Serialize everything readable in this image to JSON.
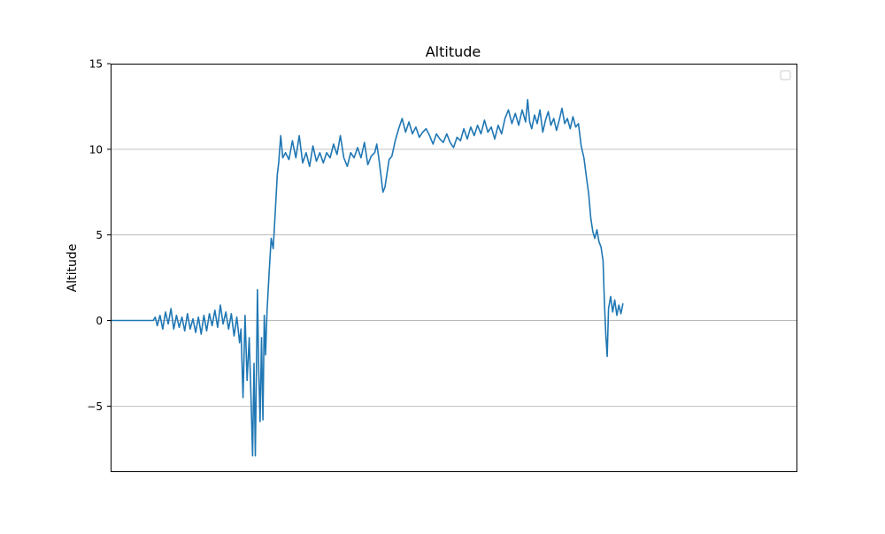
{
  "chart_data": {
    "type": "line",
    "title": "Altitude",
    "xlabel": "",
    "ylabel": "Altitude",
    "xlim": [
      0,
      1000
    ],
    "ylim": [
      -8.8,
      15
    ],
    "x_ticks_shown": false,
    "y_ticks": [
      15,
      10,
      5,
      0,
      -5
    ],
    "y_tick_labels": [
      "15",
      "10",
      "5",
      "0",
      "−5"
    ],
    "grid": "horizontal",
    "legend": "top-right",
    "series": [
      {
        "color": "#1f77b4",
        "points": [
          [
            0,
            0
          ],
          [
            30,
            0
          ],
          [
            62,
            0
          ],
          [
            65,
            0.2
          ],
          [
            68,
            -0.3
          ],
          [
            72,
            0.3
          ],
          [
            76,
            -0.5
          ],
          [
            80,
            0.5
          ],
          [
            84,
            -0.2
          ],
          [
            88,
            0.7
          ],
          [
            92,
            -0.5
          ],
          [
            96,
            0.3
          ],
          [
            100,
            -0.4
          ],
          [
            104,
            0.2
          ],
          [
            108,
            -0.6
          ],
          [
            112,
            0.4
          ],
          [
            116,
            -0.5
          ],
          [
            120,
            0.1
          ],
          [
            124,
            -0.7
          ],
          [
            128,
            0.2
          ],
          [
            132,
            -0.8
          ],
          [
            136,
            0.3
          ],
          [
            140,
            -0.6
          ],
          [
            144,
            0.4
          ],
          [
            148,
            -0.3
          ],
          [
            152,
            0.6
          ],
          [
            156,
            -0.4
          ],
          [
            160,
            0.9
          ],
          [
            164,
            -0.2
          ],
          [
            168,
            0.5
          ],
          [
            172,
            -0.5
          ],
          [
            176,
            0.4
          ],
          [
            180,
            -0.9
          ],
          [
            184,
            0.2
          ],
          [
            188,
            -1.3
          ],
          [
            190,
            -0.5
          ],
          [
            193,
            -4.5
          ],
          [
            196,
            0.3
          ],
          [
            199,
            -3.5
          ],
          [
            202,
            -1.0
          ],
          [
            205,
            -5.0
          ],
          [
            207,
            -7.9
          ],
          [
            209,
            -2.5
          ],
          [
            211,
            -7.9
          ],
          [
            214,
            1.8
          ],
          [
            216,
            -3.0
          ],
          [
            218,
            -5.9
          ],
          [
            220,
            -1.0
          ],
          [
            222,
            -5.8
          ],
          [
            224,
            0.3
          ],
          [
            226,
            -2.0
          ],
          [
            228,
            0.5
          ],
          [
            231,
            2.7
          ],
          [
            234,
            4.8
          ],
          [
            237,
            4.2
          ],
          [
            240,
            6.3
          ],
          [
            243,
            8.5
          ],
          [
            245,
            9.2
          ],
          [
            248,
            10.8
          ],
          [
            251,
            9.5
          ],
          [
            255,
            9.8
          ],
          [
            260,
            9.4
          ],
          [
            265,
            10.5
          ],
          [
            270,
            9.5
          ],
          [
            275,
            10.8
          ],
          [
            280,
            9.2
          ],
          [
            285,
            9.8
          ],
          [
            290,
            9.0
          ],
          [
            295,
            10.2
          ],
          [
            300,
            9.3
          ],
          [
            305,
            9.8
          ],
          [
            310,
            9.2
          ],
          [
            315,
            9.8
          ],
          [
            320,
            9.5
          ],
          [
            325,
            10.3
          ],
          [
            330,
            9.7
          ],
          [
            335,
            10.8
          ],
          [
            340,
            9.5
          ],
          [
            345,
            9.0
          ],
          [
            350,
            9.8
          ],
          [
            355,
            9.5
          ],
          [
            360,
            10.1
          ],
          [
            365,
            9.5
          ],
          [
            370,
            10.4
          ],
          [
            375,
            9.1
          ],
          [
            380,
            9.6
          ],
          [
            385,
            9.8
          ],
          [
            388,
            10.3
          ],
          [
            391,
            9.5
          ],
          [
            394,
            8.5
          ],
          [
            397,
            7.5
          ],
          [
            400,
            7.8
          ],
          [
            403,
            8.6
          ],
          [
            406,
            9.4
          ],
          [
            410,
            9.6
          ],
          [
            415,
            10.5
          ],
          [
            420,
            11.2
          ],
          [
            425,
            11.8
          ],
          [
            430,
            11.0
          ],
          [
            435,
            11.6
          ],
          [
            440,
            10.9
          ],
          [
            445,
            11.3
          ],
          [
            450,
            10.7
          ],
          [
            455,
            11.0
          ],
          [
            460,
            11.2
          ],
          [
            465,
            10.8
          ],
          [
            470,
            10.3
          ],
          [
            475,
            10.9
          ],
          [
            480,
            10.6
          ],
          [
            485,
            10.4
          ],
          [
            490,
            10.9
          ],
          [
            495,
            10.4
          ],
          [
            500,
            10.1
          ],
          [
            505,
            10.7
          ],
          [
            510,
            10.5
          ],
          [
            515,
            11.2
          ],
          [
            520,
            10.6
          ],
          [
            525,
            11.3
          ],
          [
            530,
            10.8
          ],
          [
            535,
            11.4
          ],
          [
            540,
            10.9
          ],
          [
            545,
            11.7
          ],
          [
            550,
            11.0
          ],
          [
            555,
            11.3
          ],
          [
            560,
            10.6
          ],
          [
            565,
            11.4
          ],
          [
            570,
            10.9
          ],
          [
            575,
            11.8
          ],
          [
            580,
            12.3
          ],
          [
            585,
            11.5
          ],
          [
            590,
            12.1
          ],
          [
            595,
            11.4
          ],
          [
            600,
            12.3
          ],
          [
            605,
            11.6
          ],
          [
            608,
            12.9
          ],
          [
            611,
            11.6
          ],
          [
            614,
            11.2
          ],
          [
            618,
            12.0
          ],
          [
            622,
            11.5
          ],
          [
            626,
            12.3
          ],
          [
            630,
            11.0
          ],
          [
            634,
            11.7
          ],
          [
            638,
            12.2
          ],
          [
            642,
            11.4
          ],
          [
            646,
            11.8
          ],
          [
            650,
            11.1
          ],
          [
            654,
            11.7
          ],
          [
            658,
            12.4
          ],
          [
            662,
            11.5
          ],
          [
            666,
            11.8
          ],
          [
            670,
            11.2
          ],
          [
            674,
            11.9
          ],
          [
            678,
            11.3
          ],
          [
            682,
            11.5
          ],
          [
            686,
            10.2
          ],
          [
            690,
            9.5
          ],
          [
            694,
            8.3
          ],
          [
            697,
            7.4
          ],
          [
            700,
            6.0
          ],
          [
            703,
            5.2
          ],
          [
            706,
            4.8
          ],
          [
            709,
            5.3
          ],
          [
            712,
            4.6
          ],
          [
            715,
            4.3
          ],
          [
            718,
            3.5
          ],
          [
            720,
            1.0
          ],
          [
            722,
            -0.8
          ],
          [
            724,
            -2.1
          ],
          [
            726,
            0.7
          ],
          [
            729,
            1.4
          ],
          [
            732,
            0.5
          ],
          [
            735,
            1.2
          ],
          [
            738,
            0.3
          ],
          [
            741,
            0.9
          ],
          [
            744,
            0.4
          ],
          [
            747,
            1.0
          ]
        ]
      }
    ]
  }
}
